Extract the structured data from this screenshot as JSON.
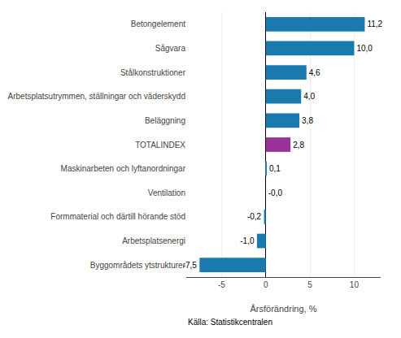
{
  "chart_data": {
    "type": "bar",
    "orientation": "horizontal",
    "categories": [
      "Byggområdets ytstrukturer",
      "Arbetsplatsenergi",
      "Formmaterial och därtill hörande stöd",
      "Ventilation",
      "Maskinarbeten och lyftanordningar",
      "TOTALINDEX",
      "Beläggning",
      "Arbetsplatsutrymmen, ställningar och väderskydd",
      "Stålkonstruktioner",
      "Sågvara",
      "Betongelement"
    ],
    "values": [
      -7.5,
      -1.0,
      -0.2,
      -0.0,
      0.1,
      2.8,
      3.8,
      4.0,
      4.6,
      10.0,
      11.2
    ],
    "value_labels": [
      "-7,5",
      "-1,0",
      "-0,2",
      "-0,0",
      "0,1",
      "2,8",
      "3,8",
      "4,0",
      "4,6",
      "10,0",
      "11,2"
    ],
    "data_labels": true,
    "colors": [
      "#1a7aad",
      "#1a7aad",
      "#1a7aad",
      "#1a7aad",
      "#1a7aad",
      "#993399",
      "#1a7aad",
      "#1a7aad",
      "#1a7aad",
      "#1a7aad",
      "#1a7aad"
    ],
    "xlabel": "Årsförändring, %",
    "xlim": [
      -9,
      13
    ],
    "xticks": [
      -5,
      0,
      5,
      10
    ],
    "grid": true,
    "annotations": [
      {
        "text": "Källa: Statistikcentralen"
      }
    ]
  }
}
